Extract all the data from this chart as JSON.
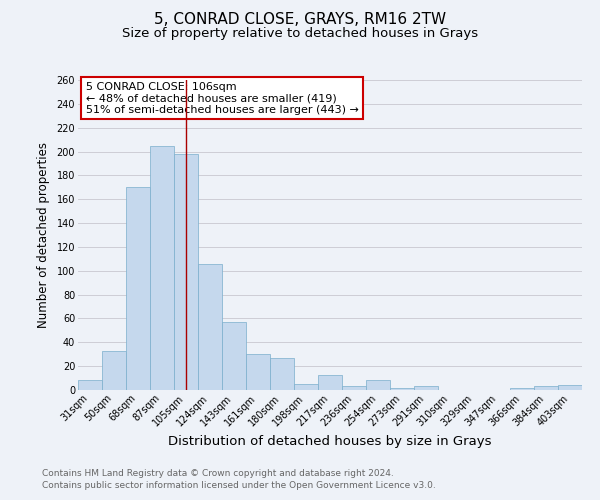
{
  "title": "5, CONRAD CLOSE, GRAYS, RM16 2TW",
  "subtitle": "Size of property relative to detached houses in Grays",
  "xlabel": "Distribution of detached houses by size in Grays",
  "ylabel": "Number of detached properties",
  "categories": [
    "31sqm",
    "50sqm",
    "68sqm",
    "87sqm",
    "105sqm",
    "124sqm",
    "143sqm",
    "161sqm",
    "180sqm",
    "198sqm",
    "217sqm",
    "236sqm",
    "254sqm",
    "273sqm",
    "291sqm",
    "310sqm",
    "329sqm",
    "347sqm",
    "366sqm",
    "384sqm",
    "403sqm"
  ],
  "values": [
    8,
    33,
    170,
    205,
    198,
    106,
    57,
    30,
    27,
    5,
    13,
    3,
    8,
    2,
    3,
    0,
    0,
    0,
    2,
    3,
    4
  ],
  "bar_color": "#c5d8ed",
  "bar_edge_color": "#7aaecc",
  "highlight_index": 4,
  "highlight_line_color": "#aa0000",
  "ylim": [
    0,
    260
  ],
  "yticks": [
    0,
    20,
    40,
    60,
    80,
    100,
    120,
    140,
    160,
    180,
    200,
    220,
    240,
    260
  ],
  "annotation_box_text": "5 CONRAD CLOSE: 106sqm\n← 48% of detached houses are smaller (419)\n51% of semi-detached houses are larger (443) →",
  "annotation_box_color": "#ffffff",
  "annotation_box_edge_color": "#cc0000",
  "grid_color": "#c8c8d0",
  "bg_color": "#eef2f8",
  "footer_line1": "Contains HM Land Registry data © Crown copyright and database right 2024.",
  "footer_line2": "Contains public sector information licensed under the Open Government Licence v3.0.",
  "title_fontsize": 11,
  "subtitle_fontsize": 9.5,
  "xlabel_fontsize": 9.5,
  "ylabel_fontsize": 8.5,
  "tick_fontsize": 7,
  "annotation_fontsize": 8,
  "footer_fontsize": 6.5
}
